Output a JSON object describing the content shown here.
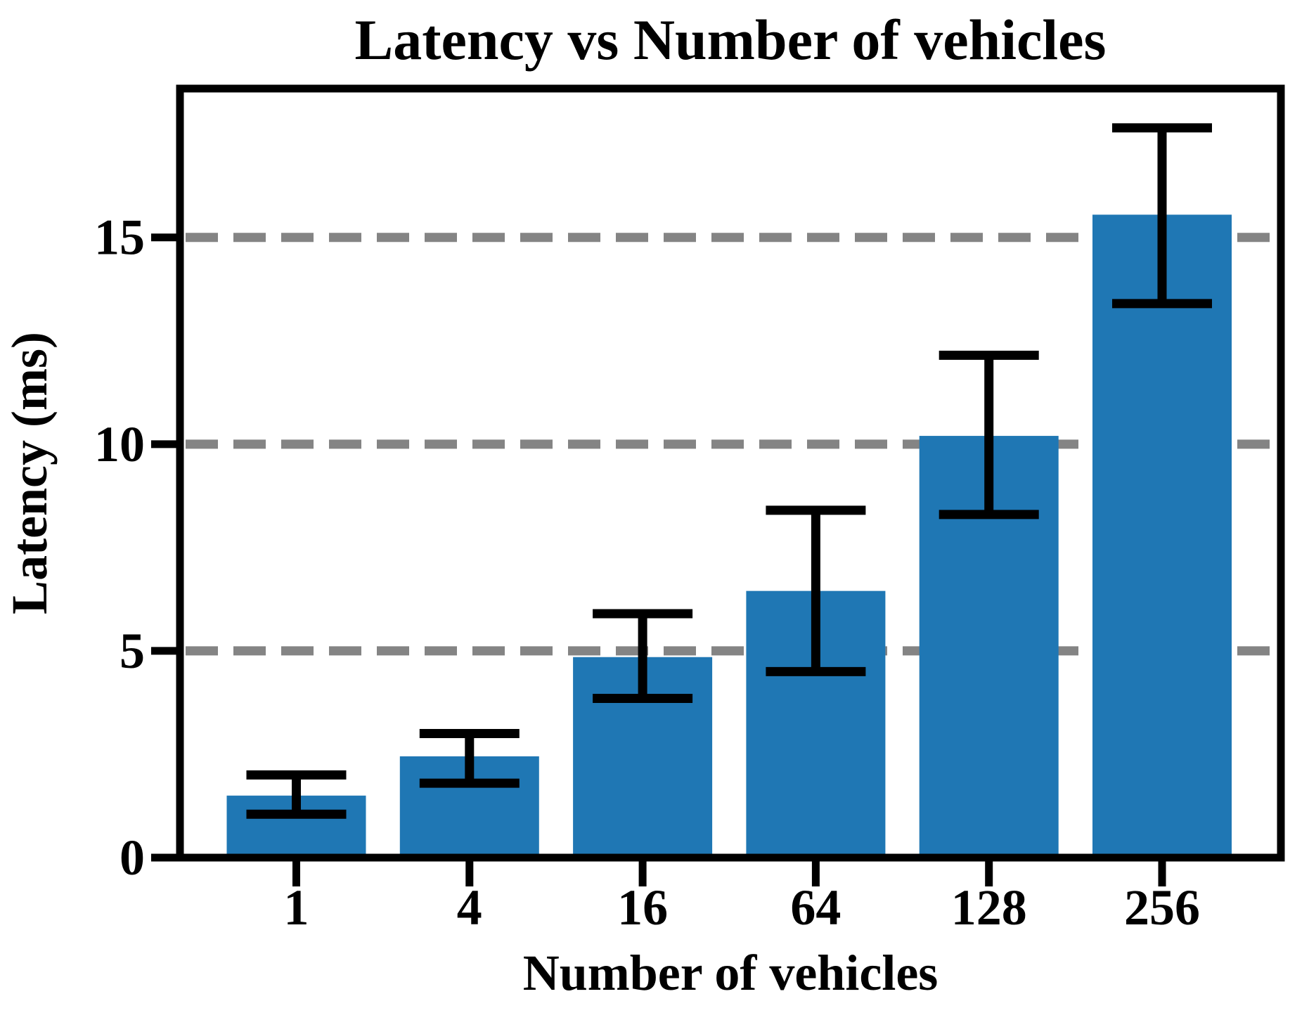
{
  "page": {
    "background": "#ffffff"
  },
  "chart_data": {
    "type": "bar",
    "title": "Latency vs Number of vehicles",
    "xlabel": "Number of vehicles",
    "ylabel": "Latency (ms)",
    "categories": [
      "1",
      "4",
      "16",
      "64",
      "128",
      "256"
    ],
    "series": [
      {
        "name": "Latency",
        "values": [
          1.5,
          2.45,
          4.85,
          6.45,
          10.2,
          15.55
        ],
        "error_lower": [
          1.05,
          1.8,
          3.85,
          4.5,
          8.3,
          13.4
        ],
        "error_upper": [
          2.0,
          3.0,
          5.9,
          8.4,
          12.15,
          17.65
        ]
      }
    ],
    "yticks": [
      0,
      5,
      10,
      15
    ],
    "ytick_labels": [
      "0",
      "5",
      "10",
      "15"
    ],
    "ylim": [
      0,
      18.6
    ],
    "grid": {
      "values": [
        5,
        10,
        15
      ],
      "style": "dashed",
      "color": "#848484"
    },
    "bar_color": "#1f77b4",
    "error_bar_color": "#000000",
    "spine_color": "#000000",
    "legend": null
  }
}
